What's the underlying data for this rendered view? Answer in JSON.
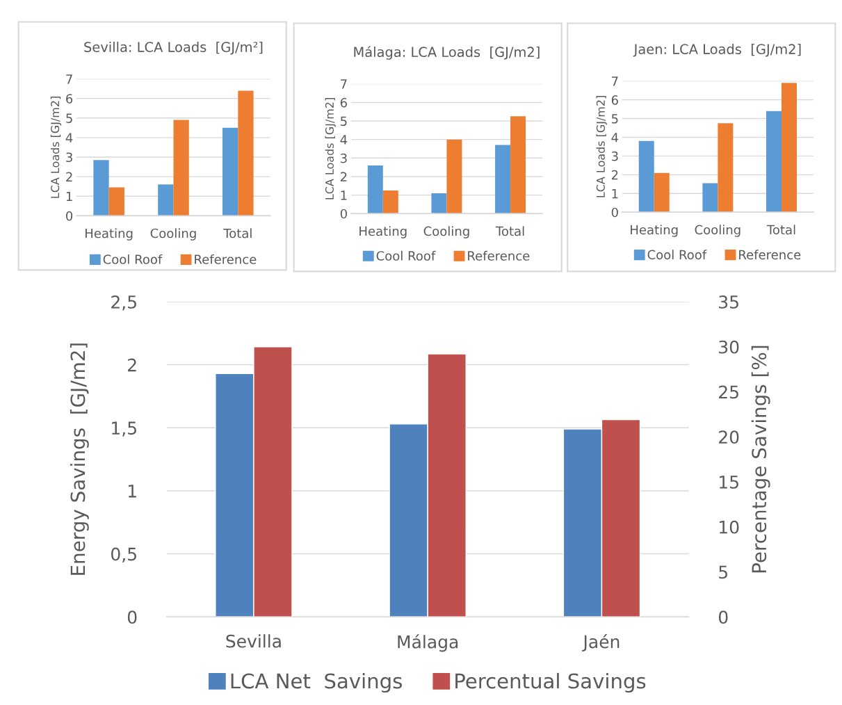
{
  "chart_data": [
    {
      "type": "bar",
      "title": "Sevilla: LCA Loads  [GJ/m²]",
      "ylabel": "LCA Loads [GJ/m2]",
      "categories": [
        "Heating",
        "Cooling",
        "Total"
      ],
      "series": [
        {
          "name": "Cool Roof",
          "color": "#5b9bd5",
          "values": [
            2.85,
            1.6,
            4.5
          ]
        },
        {
          "name": "Reference",
          "color": "#ed7d31",
          "values": [
            1.45,
            4.9,
            6.4
          ]
        }
      ],
      "ylim": [
        0,
        7
      ],
      "yticks": [
        0,
        1,
        2,
        3,
        4,
        5,
        6,
        7
      ],
      "grid": "y",
      "legend": "bottom"
    },
    {
      "type": "bar",
      "title": "Málaga: LCA Loads  [GJ/m2]",
      "ylabel": "LCA Loads [GJ/m2]",
      "categories": [
        "Heating",
        "Cooling",
        "Total"
      ],
      "series": [
        {
          "name": "Cool Roof",
          "color": "#5b9bd5",
          "values": [
            2.6,
            1.1,
            3.7
          ]
        },
        {
          "name": "Reference",
          "color": "#ed7d31",
          "values": [
            1.25,
            4.0,
            5.25
          ]
        }
      ],
      "ylim": [
        0,
        7
      ],
      "yticks": [
        0,
        1,
        2,
        3,
        4,
        5,
        6,
        7
      ],
      "grid": "y",
      "legend": "bottom"
    },
    {
      "type": "bar",
      "title": "Jaen: LCA Loads  [GJ/m2]",
      "ylabel": "LCA Loads [GJ/m2]",
      "categories": [
        "Heating",
        "Cooling",
        "Total"
      ],
      "series": [
        {
          "name": "Cool Roof",
          "color": "#5b9bd5",
          "values": [
            3.8,
            1.55,
            5.4
          ]
        },
        {
          "name": "Reference",
          "color": "#ed7d31",
          "values": [
            2.1,
            4.75,
            6.9
          ]
        }
      ],
      "ylim": [
        0,
        7
      ],
      "yticks": [
        0,
        1,
        2,
        3,
        4,
        5,
        6,
        7
      ],
      "grid": "y",
      "legend": "bottom"
    },
    {
      "type": "bar",
      "ylabel": "Energy Savings  [GJ/m2]",
      "y2label": "Percentage Savings [%]",
      "categories": [
        "Sevilla",
        "Málaga",
        "Jaén"
      ],
      "series": [
        {
          "name": "LCA Net  Savings",
          "color": "#4f81bd",
          "values": [
            1.93,
            1.53,
            1.49
          ]
        },
        {
          "name": "Percentual Savings",
          "color": "#c0504d",
          "values": [
            30.0,
            29.2,
            21.9
          ],
          "axis": "y2"
        }
      ],
      "ylim": [
        0,
        2.5
      ],
      "yticks": [
        0,
        {
          "value": 0.5,
          "label": "0,5"
        },
        1,
        {
          "value": 1.5,
          "label": "1,5"
        },
        2,
        {
          "value": 2.5,
          "label": "2,5"
        }
      ],
      "y2lim": [
        0,
        35
      ],
      "y2ticks": [
        0,
        5,
        10,
        15,
        20,
        25,
        30,
        35
      ],
      "grid": "y",
      "legend": "bottom"
    }
  ]
}
